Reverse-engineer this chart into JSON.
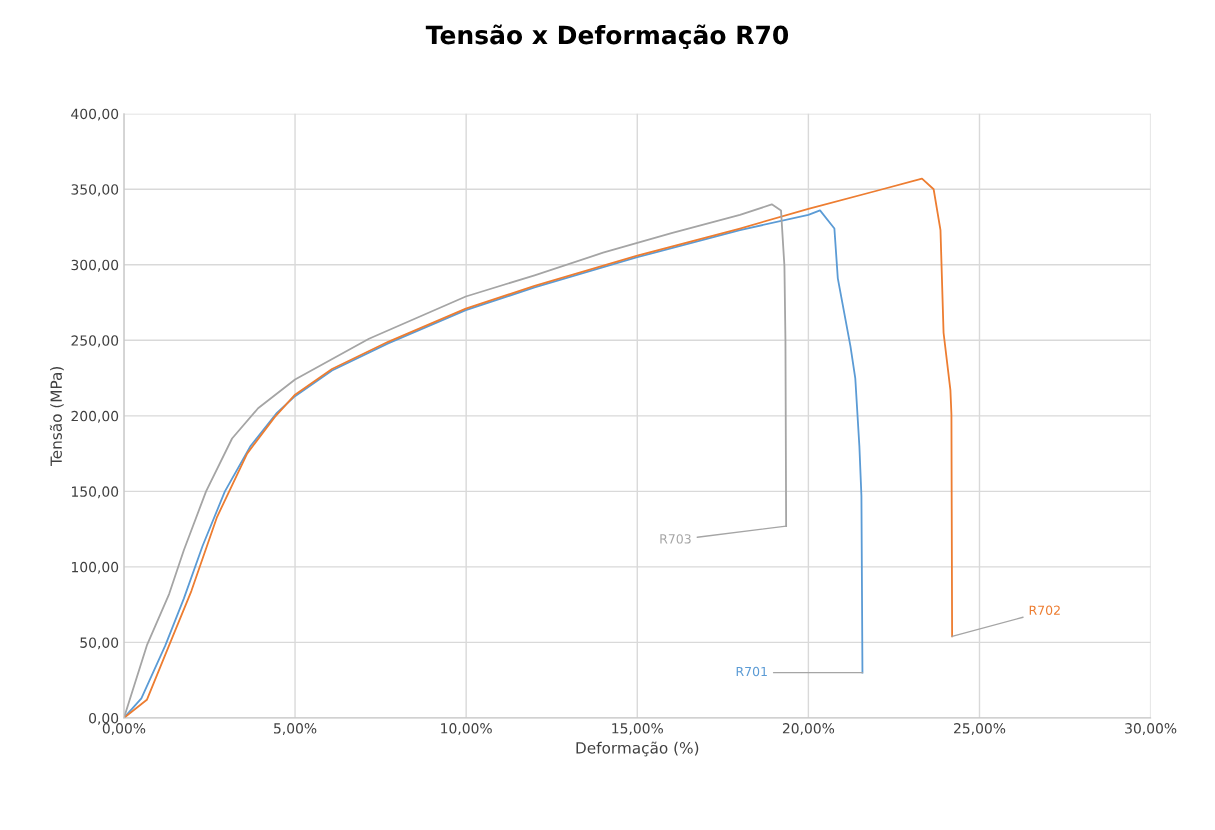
{
  "chart_data": {
    "type": "line",
    "title": "Tensão x Deformação R70",
    "xlabel": "Deformação (%)",
    "ylabel": "Tensão (MPa)",
    "xlim": [
      0,
      30
    ],
    "ylim": [
      0,
      400
    ],
    "xticks": [
      {
        "value": 0,
        "label": "0,00%"
      },
      {
        "value": 5,
        "label": "5,00%"
      },
      {
        "value": 10,
        "label": "10,00%"
      },
      {
        "value": 15,
        "label": "15,00%"
      },
      {
        "value": 20,
        "label": "20,00%"
      },
      {
        "value": 25,
        "label": "25,00%"
      },
      {
        "value": 30,
        "label": "30,00%"
      }
    ],
    "yticks": [
      {
        "value": 0,
        "label": "0,00"
      },
      {
        "value": 50,
        "label": "50,00"
      },
      {
        "value": 100,
        "label": "100,00"
      },
      {
        "value": 150,
        "label": "150,00"
      },
      {
        "value": 200,
        "label": "200,00"
      },
      {
        "value": 250,
        "label": "250,00"
      },
      {
        "value": 300,
        "label": "300,00"
      },
      {
        "value": 350,
        "label": "350,00"
      },
      {
        "value": 400,
        "label": "400,00"
      }
    ],
    "grid": true,
    "legend": false,
    "marker": "none",
    "line_style": "solid",
    "series": [
      {
        "name": "R701",
        "color": "#5b9bd5",
        "x": [
          0,
          0.51,
          1.21,
          1.75,
          2.3,
          2.95,
          3.7,
          4.47,
          5.0,
          6.08,
          7.72,
          9.99,
          12,
          15,
          18,
          20.0,
          20.34,
          20.76,
          20.86,
          21.23,
          21.37,
          21.49,
          21.55,
          21.58
        ],
        "values": [
          0,
          13,
          48,
          79,
          114,
          150,
          180,
          202,
          213,
          230,
          248,
          270,
          285,
          305,
          323,
          333,
          336,
          324,
          291,
          246,
          225,
          180,
          147,
          30
        ]
      },
      {
        "name": "R702",
        "color": "#ed7d31",
        "x": [
          0,
          0.67,
          1.32,
          1.97,
          2.72,
          3.6,
          4.4,
          5.0,
          6.08,
          7.72,
          9.99,
          12,
          15,
          18,
          20,
          22,
          23.32,
          23.66,
          23.86,
          23.95,
          24.15,
          24.18,
          24.2
        ],
        "values": [
          0,
          12,
          48,
          84,
          133,
          175,
          199,
          214,
          231,
          249,
          271,
          286,
          306,
          324,
          337,
          349,
          357,
          350,
          323,
          255,
          217,
          201,
          54
        ]
      },
      {
        "name": "R703",
        "color": "#a5a5a5",
        "x": [
          0,
          0.67,
          1.32,
          1.75,
          2.4,
          3.16,
          3.92,
          5.0,
          7.16,
          9.99,
          12,
          14,
          16,
          18,
          18.93,
          19.2,
          19.3,
          19.33,
          19.35
        ],
        "values": [
          0,
          48,
          82,
          111,
          150,
          185,
          205,
          224,
          251,
          279,
          293,
          308,
          321,
          333,
          340,
          336,
          299,
          250,
          127
        ]
      }
    ]
  }
}
